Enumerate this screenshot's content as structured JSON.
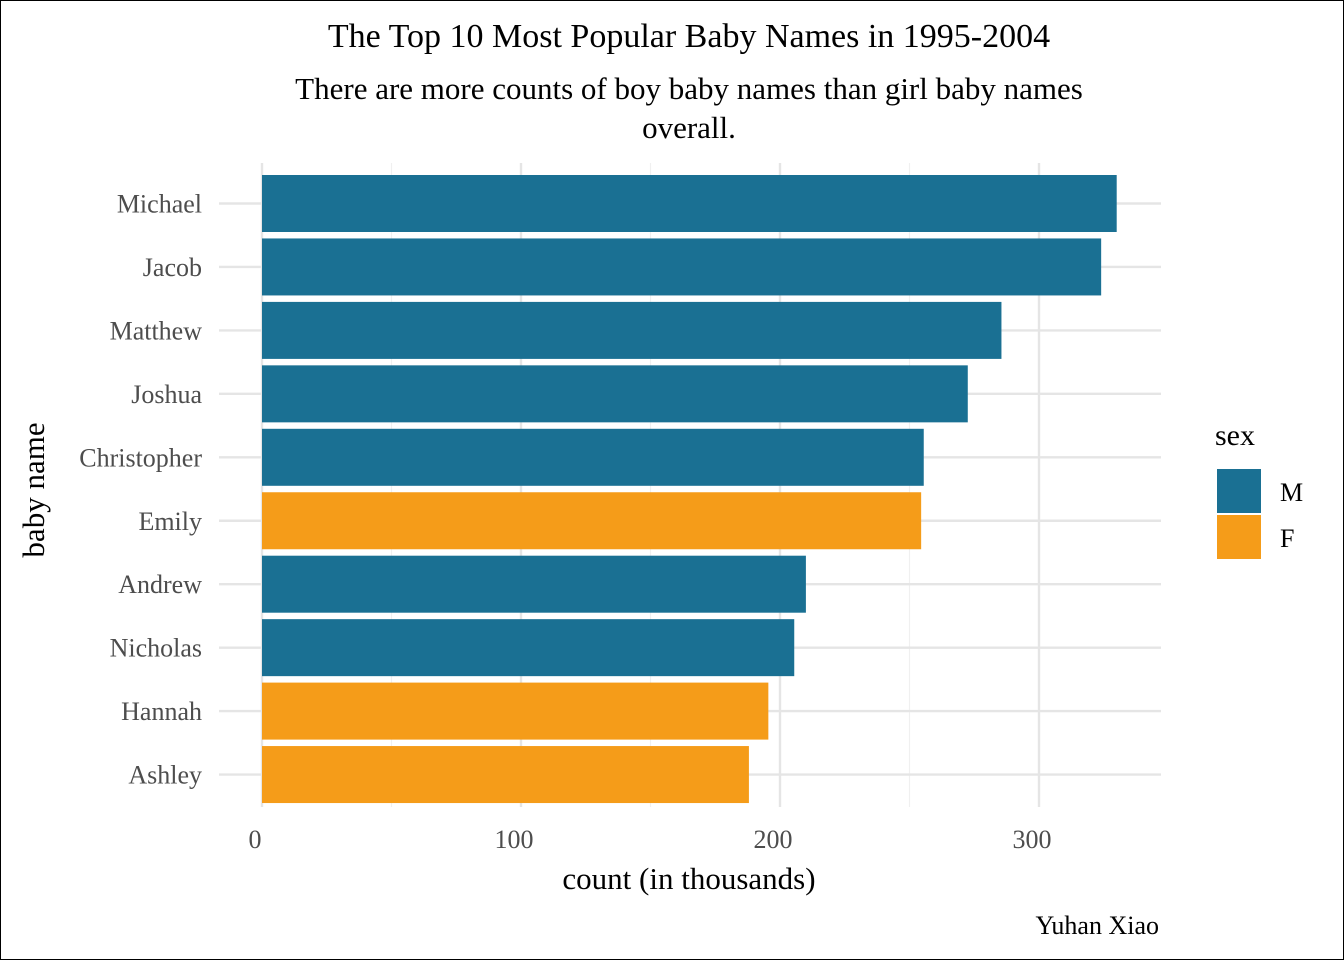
{
  "chart_data": {
    "type": "bar",
    "orientation": "horizontal",
    "title": "The Top 10 Most Popular Baby Names in 1995-2004",
    "subtitle_lines": [
      "There are more counts of boy baby names than girl baby names",
      "overall."
    ],
    "xlabel": "count (in thousands)",
    "ylabel": "baby name",
    "caption": "Yuhan Xiao",
    "xlim": [
      0,
      345
    ],
    "xticks": [
      0,
      100,
      200,
      300
    ],
    "xtick_labels": [
      "0",
      "100",
      "200",
      "300"
    ],
    "grid": true,
    "legend": {
      "title": "sex",
      "position": "right",
      "entries": [
        {
          "label": "M",
          "color": "#1a7093"
        },
        {
          "label": "F",
          "color": "#f59c19"
        }
      ]
    },
    "categories": [
      "Michael",
      "Jacob",
      "Matthew",
      "Joshua",
      "Christopher",
      "Emily",
      "Andrew",
      "Nicholas",
      "Hannah",
      "Ashley"
    ],
    "values": [
      330,
      324,
      285.5,
      272.5,
      255.5,
      254.5,
      210,
      205.5,
      195.5,
      188
    ],
    "sex": [
      "M",
      "M",
      "M",
      "M",
      "M",
      "F",
      "M",
      "M",
      "F",
      "F"
    ]
  }
}
